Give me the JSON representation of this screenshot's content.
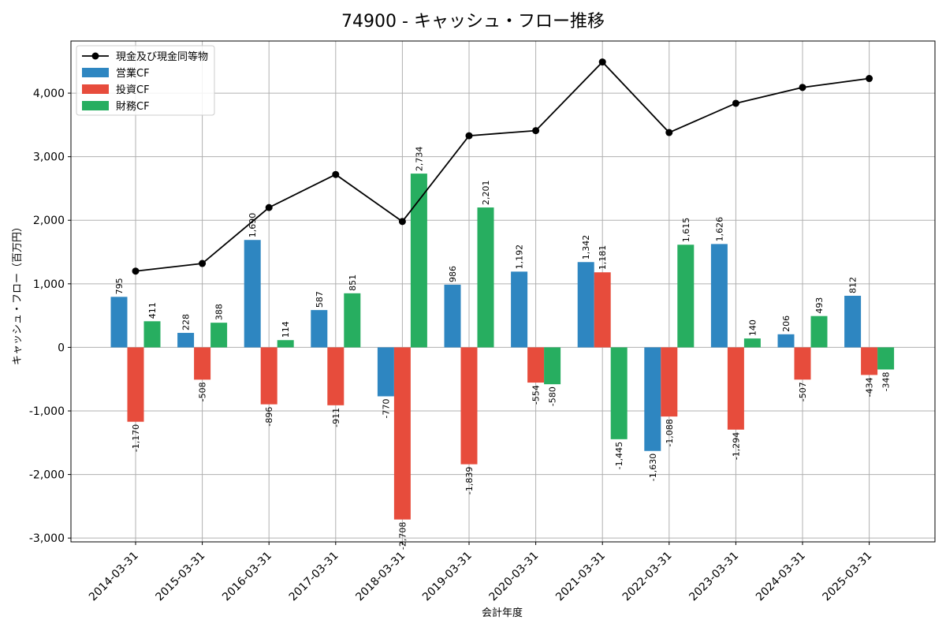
{
  "chart_data": {
    "type": "bar",
    "title": "74900 - キャッシュ・フロー推移",
    "xlabel": "会計年度",
    "ylabel": "キャッシュ・フロー（百万円）",
    "categories": [
      "2014-03-31",
      "2015-03-31",
      "2016-03-31",
      "2017-03-31",
      "2018-03-31",
      "2019-03-31",
      "2020-03-31",
      "2021-03-31",
      "2022-03-31",
      "2023-03-31",
      "2024-03-31",
      "2025-03-31"
    ],
    "series": [
      {
        "name": "営業CF",
        "kind": "bar",
        "color": "#2e86c1",
        "values": [
          795,
          228,
          1690,
          587,
          -770,
          986,
          1192,
          1342,
          -1630,
          1626,
          206,
          812
        ],
        "labels": [
          "795",
          "228",
          "1,690",
          "587",
          "-770",
          "986",
          "1,192",
          "1,342",
          "-1,630",
          "1,626",
          "206",
          "812"
        ]
      },
      {
        "name": "投資CF",
        "kind": "bar",
        "color": "#e74c3c",
        "values": [
          -1170,
          -508,
          -896,
          -911,
          -2708,
          -1839,
          -554,
          1181,
          -1088,
          -1294,
          -507,
          -434
        ],
        "labels": [
          "-1,170",
          "-508",
          "-896",
          "-911",
          "-2,708",
          "-1,839",
          "-554",
          "1,181",
          "-1,088",
          "-1,294",
          "-507",
          "-434"
        ]
      },
      {
        "name": "財務CF",
        "kind": "bar",
        "color": "#27ae60",
        "values": [
          411,
          388,
          114,
          851,
          2734,
          2201,
          -580,
          -1445,
          1615,
          140,
          493,
          -348
        ],
        "labels": [
          "411",
          "388",
          "114",
          "851",
          "2,734",
          "2,201",
          "-580",
          "-1,445",
          "1,615",
          "140",
          "493",
          "-348"
        ]
      },
      {
        "name": "現金及び現金同等物",
        "kind": "line",
        "color": "#000000",
        "values": [
          1200,
          1320,
          2200,
          2720,
          1980,
          3330,
          3410,
          4490,
          3380,
          3840,
          4090,
          4230
        ]
      }
    ],
    "yticks": [
      -3000,
      -2000,
      -1000,
      0,
      1000,
      2000,
      3000,
      4000
    ],
    "ytick_labels": [
      "-3,000",
      "-2,000",
      "-1,000",
      "0",
      "1,000",
      "2,000",
      "3,000",
      "4,000"
    ],
    "ylim": [
      -3060,
      4820
    ],
    "grid": true,
    "legend": "top-left"
  }
}
